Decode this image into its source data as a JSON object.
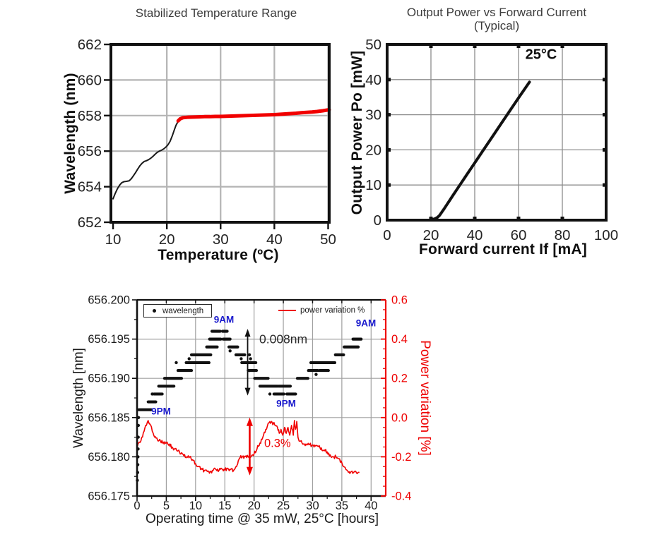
{
  "colors": {
    "red": "#ee0000",
    "red_curve": "#f10000",
    "blue": "#1a1acd",
    "black": "#111111",
    "title_gray": "#3c3c3c",
    "grid_light": "#b4b4b4",
    "grid_mid": "#8c8c8c",
    "grid_bottom": "#a0a0a0"
  },
  "chart_data": [
    {
      "type": "line",
      "title": "Stabilized Temperature Range",
      "xlabel": "Temperature (ºC)",
      "ylabel": "Wavelength (nm)",
      "xlim": [
        10,
        50
      ],
      "ylim": [
        652,
        662
      ],
      "x_ticks": [
        10,
        20,
        30,
        40,
        50
      ],
      "y_ticks": [
        652,
        654,
        656,
        658,
        660,
        662
      ],
      "grid": true,
      "series": [
        {
          "name": "unstabilized-wavelength",
          "color": "#1a1a1a",
          "width": 2,
          "points": [
            [
              10,
              653.32
            ],
            [
              10.4,
              653.62
            ],
            [
              10.8,
              653.88
            ],
            [
              11.2,
              654.08
            ],
            [
              11.6,
              654.22
            ],
            [
              12,
              654.28
            ],
            [
              12.5,
              654.3
            ],
            [
              13,
              654.33
            ],
            [
              13.4,
              654.45
            ],
            [
              13.8,
              654.62
            ],
            [
              14.2,
              654.8
            ],
            [
              14.6,
              655.0
            ],
            [
              15,
              655.18
            ],
            [
              15.4,
              655.32
            ],
            [
              15.8,
              655.42
            ],
            [
              16.2,
              655.46
            ],
            [
              16.6,
              655.52
            ],
            [
              17,
              655.6
            ],
            [
              17.4,
              655.7
            ],
            [
              17.8,
              655.82
            ],
            [
              18.2,
              655.93
            ],
            [
              18.6,
              656.0
            ],
            [
              19,
              656.05
            ],
            [
              19.4,
              656.12
            ],
            [
              19.8,
              656.22
            ],
            [
              20.2,
              656.35
            ],
            [
              20.6,
              656.55
            ],
            [
              21,
              656.85
            ],
            [
              21.4,
              657.2
            ],
            [
              21.7,
              657.45
            ],
            [
              22,
              657.62
            ],
            [
              22.2,
              657.7
            ]
          ]
        },
        {
          "name": "stabilized-wavelength",
          "color": "#f10000",
          "width": 5,
          "points": [
            [
              22.1,
              657.7
            ],
            [
              22.5,
              657.82
            ],
            [
              23,
              657.88
            ],
            [
              24,
              657.91
            ],
            [
              25,
              657.92
            ],
            [
              26,
              657.93
            ],
            [
              27,
              657.94
            ],
            [
              28,
              657.94
            ],
            [
              29,
              657.95
            ],
            [
              30,
              657.95
            ],
            [
              31,
              657.96
            ],
            [
              32,
              657.97
            ],
            [
              33,
              657.98
            ],
            [
              34,
              657.99
            ],
            [
              35,
              658.0
            ],
            [
              36,
              658.01
            ],
            [
              37,
              658.02
            ],
            [
              38,
              658.03
            ],
            [
              39,
              658.04
            ],
            [
              40,
              658.05
            ],
            [
              41,
              658.07
            ],
            [
              42,
              658.09
            ],
            [
              43,
              658.11
            ],
            [
              44,
              658.13
            ],
            [
              45,
              658.16
            ],
            [
              46,
              658.18
            ],
            [
              47,
              658.2
            ],
            [
              48,
              658.23
            ],
            [
              49,
              658.27
            ],
            [
              50,
              658.32
            ],
            [
              50.2,
              658.33
            ]
          ]
        }
      ]
    },
    {
      "type": "line",
      "title": "Output Power vs Forward Current",
      "subtitle": "(Typical)",
      "xlabel": "Forward current If [mA]",
      "ylabel": "Output Power Po [mW]",
      "xlim": [
        0,
        100
      ],
      "ylim": [
        0,
        50
      ],
      "x_ticks": [
        0,
        20,
        40,
        60,
        80,
        100
      ],
      "y_ticks": [
        0,
        10,
        20,
        30,
        40,
        50
      ],
      "grid": true,
      "annotation": "25°C",
      "series": [
        {
          "name": "L-I-curve",
          "color": "#111111",
          "width": 4,
          "points": [
            [
              20,
              0.15
            ],
            [
              21,
              0.25
            ],
            [
              22,
              0.45
            ],
            [
              23,
              0.8
            ],
            [
              24,
              1.4
            ],
            [
              25,
              2.3
            ],
            [
              26,
              3.2
            ],
            [
              28,
              5.1
            ],
            [
              30,
              7.0
            ],
            [
              33,
              9.8
            ],
            [
              36,
              12.6
            ],
            [
              40,
              16.3
            ],
            [
              44,
              20.0
            ],
            [
              48,
              23.7
            ],
            [
              52,
              27.4
            ],
            [
              56,
              31.1
            ],
            [
              60,
              34.8
            ],
            [
              63,
              37.5
            ],
            [
              65,
              39.3
            ]
          ]
        }
      ]
    },
    {
      "type": "scatter",
      "xlabel": "Operating time @ 35 mW, 25°C [hours]",
      "ylabel_left": "Wavelength [nm]",
      "ylabel_right": "Power variation [%]",
      "xlim": [
        0,
        42.5
      ],
      "ylim_left": [
        656.175,
        656.2
      ],
      "ylim_right": [
        -0.4,
        0.6
      ],
      "x_ticks": [
        0,
        5,
        10,
        15,
        20,
        25,
        30,
        35,
        40
      ],
      "y_ticks_left": [
        "656.175",
        "656.180",
        "656.185",
        "656.190",
        "656.195",
        "656.200"
      ],
      "y_ticks_right": [
        "-0.4",
        "-0.2",
        "0.0",
        "0.2",
        "0.4",
        "0.6"
      ],
      "legend": [
        {
          "label": "wavelength",
          "marker": "dot",
          "color": "#111111"
        },
        {
          "label": "power variation %",
          "marker": "line",
          "color": "#ee0000"
        }
      ],
      "annotations": [
        {
          "text": "9AM"
        },
        {
          "text": "9AM"
        },
        {
          "text": "9PM"
        },
        {
          "text": "9PM"
        },
        {
          "text": "0.008nm"
        },
        {
          "text": "0.3%"
        }
      ],
      "arrows": [
        {
          "axis": "left",
          "x": 18.9,
          "from": 656.1963,
          "to": 656.1878,
          "color": "#111111",
          "width": 1.8
        },
        {
          "axis": "right",
          "x": 19.25,
          "from": 0.0,
          "to": -0.295,
          "color": "#ee0000",
          "width": 2.6
        }
      ],
      "wavelength_segments": [
        [
          0.3,
          2.4,
          656.186
        ],
        [
          1.9,
          3.2,
          656.187
        ],
        [
          2.9,
          4.3,
          656.188
        ],
        [
          3.7,
          6.3,
          656.189
        ],
        [
          4.7,
          7.6,
          656.19
        ],
        [
          7.0,
          9.3,
          656.191
        ],
        [
          8.4,
          12.3,
          656.192
        ],
        [
          9.3,
          12.6,
          656.193
        ],
        [
          11.9,
          13.7,
          656.194
        ],
        [
          12.4,
          14.3,
          656.195
        ],
        [
          14.7,
          15.9,
          656.195
        ],
        [
          12.8,
          14.2,
          656.196
        ],
        [
          14.6,
          15.4,
          656.196
        ],
        [
          15.7,
          17.2,
          656.194
        ],
        [
          16.9,
          18.4,
          656.193
        ],
        [
          17.9,
          20.3,
          656.192
        ],
        [
          19.0,
          20.4,
          656.191
        ],
        [
          20.1,
          22.4,
          656.19
        ],
        [
          21.0,
          24.0,
          656.189
        ],
        [
          24.2,
          26.2,
          656.189
        ],
        [
          23.4,
          25.1,
          656.188
        ],
        [
          25.6,
          27.1,
          656.188
        ],
        [
          27.4,
          29.2,
          656.19
        ],
        [
          29.3,
          30.9,
          656.191
        ],
        [
          31.2,
          32.7,
          656.191
        ],
        [
          29.7,
          33.8,
          656.192
        ],
        [
          33.9,
          35.3,
          656.193
        ],
        [
          35.4,
          37.8,
          656.194
        ],
        [
          36.9,
          38.3,
          656.195
        ]
      ],
      "wavelength_dots": [
        [
          0.05,
          656.177
        ],
        [
          0.1,
          656.178
        ],
        [
          0.13,
          656.179
        ],
        [
          0.16,
          656.18
        ],
        [
          0.18,
          656.181
        ],
        [
          0.2,
          656.1825
        ],
        [
          0.22,
          656.184
        ],
        [
          0.25,
          656.185
        ],
        [
          2.6,
          656.188
        ],
        [
          6.7,
          656.192
        ],
        [
          8.9,
          656.1925
        ],
        [
          15.9,
          656.1935
        ],
        [
          17.8,
          656.1925
        ],
        [
          19.2,
          656.193
        ],
        [
          19.4,
          656.1925
        ],
        [
          19.2,
          656.191
        ],
        [
          22.7,
          656.188
        ],
        [
          30.6,
          656.1905
        ]
      ],
      "power_curve": [
        [
          0,
          -0.05
        ],
        [
          0.08,
          -0.145
        ],
        [
          0.4,
          -0.125
        ],
        [
          0.8,
          -0.1
        ],
        [
          1.2,
          -0.07
        ],
        [
          1.6,
          -0.04
        ],
        [
          1.9,
          -0.015
        ],
        [
          2.2,
          -0.035
        ],
        [
          2.6,
          -0.07
        ],
        [
          3,
          -0.1
        ],
        [
          3.5,
          -0.115
        ],
        [
          4,
          -0.12
        ],
        [
          4.5,
          -0.125
        ],
        [
          5,
          -0.13
        ],
        [
          5.5,
          -0.135
        ],
        [
          6,
          -0.15
        ],
        [
          6.5,
          -0.16
        ],
        [
          7,
          -0.17
        ],
        [
          7.5,
          -0.185
        ],
        [
          8,
          -0.195
        ],
        [
          8.5,
          -0.2
        ],
        [
          9,
          -0.2
        ],
        [
          9.5,
          -0.215
        ],
        [
          10,
          -0.235
        ],
        [
          10.5,
          -0.25
        ],
        [
          11,
          -0.26
        ],
        [
          11.5,
          -0.27
        ],
        [
          12,
          -0.275
        ],
        [
          12.5,
          -0.275
        ],
        [
          13,
          -0.27
        ],
        [
          13.5,
          -0.265
        ],
        [
          14,
          -0.27
        ],
        [
          14.5,
          -0.262
        ],
        [
          15,
          -0.268
        ],
        [
          15.5,
          -0.26
        ],
        [
          16,
          -0.265
        ],
        [
          16.5,
          -0.268
        ],
        [
          17,
          -0.25
        ],
        [
          17.3,
          -0.22
        ],
        [
          17.6,
          -0.205
        ],
        [
          18,
          -0.2
        ],
        [
          18.5,
          -0.198
        ],
        [
          19,
          -0.2
        ],
        [
          19.5,
          -0.198
        ],
        [
          20,
          -0.185
        ],
        [
          20.5,
          -0.16
        ],
        [
          21,
          -0.13
        ],
        [
          21.5,
          -0.1
        ],
        [
          22,
          -0.06
        ],
        [
          22.4,
          -0.03
        ],
        [
          22.7,
          -0.02
        ],
        [
          23,
          -0.02
        ],
        [
          23.3,
          -0.03
        ],
        [
          23.6,
          -0.04
        ],
        [
          24,
          -0.05
        ],
        [
          24.3,
          -0.08
        ],
        [
          24.6,
          -0.06
        ],
        [
          24.9,
          -0.09
        ],
        [
          25.2,
          -0.05
        ],
        [
          25.5,
          -0.08
        ],
        [
          25.8,
          -0.05
        ],
        [
          26.1,
          -0.09
        ],
        [
          26.4,
          -0.04
        ],
        [
          26.7,
          -0.09
        ],
        [
          26.9,
          -0.015
        ],
        [
          27.1,
          -0.06
        ],
        [
          27.3,
          -0.02
        ],
        [
          27.5,
          -0.1
        ],
        [
          27.8,
          -0.12
        ],
        [
          28.2,
          -0.13
        ],
        [
          28.6,
          -0.135
        ],
        [
          29,
          -0.14
        ],
        [
          29.5,
          -0.138
        ],
        [
          30,
          -0.14
        ],
        [
          30.5,
          -0.145
        ],
        [
          31,
          -0.148
        ],
        [
          31.5,
          -0.155
        ],
        [
          32,
          -0.165
        ],
        [
          32.5,
          -0.175
        ],
        [
          33,
          -0.19
        ],
        [
          33.5,
          -0.2
        ],
        [
          34,
          -0.2
        ],
        [
          34.5,
          -0.21
        ],
        [
          35,
          -0.23
        ],
        [
          35.3,
          -0.25
        ],
        [
          35.7,
          -0.265
        ],
        [
          36,
          -0.272
        ],
        [
          36.5,
          -0.278
        ],
        [
          37,
          -0.28
        ],
        [
          37.5,
          -0.282
        ],
        [
          38,
          -0.28
        ]
      ]
    }
  ]
}
